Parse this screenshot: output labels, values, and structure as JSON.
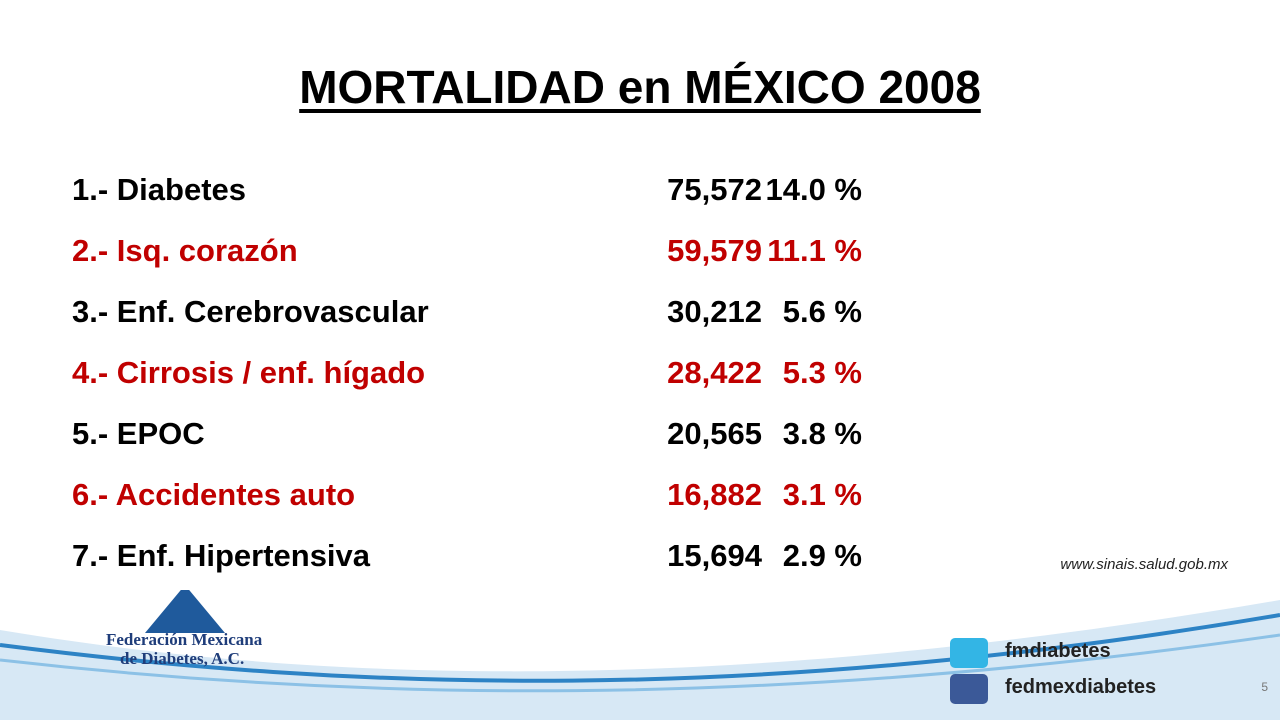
{
  "header": {
    "title": "MORTALIDAD en MÉXICO 2008"
  },
  "table": {
    "rows": [
      [
        "1.- Diabetes",
        "75,572",
        "14.0 %"
      ],
      [
        "2.- Isq. corazón",
        "59,579",
        "11.1 %"
      ],
      [
        "3.- Enf. Cerebrovascular",
        "30,212",
        "5.6 %"
      ],
      [
        "4.- Cirrosis / enf. hígado",
        "28,422",
        "5.3 %"
      ],
      [
        "5.- EPOC",
        "20,565",
        "3.8 %"
      ],
      [
        "6.- Accidentes auto",
        "16,882",
        "3.1 %"
      ],
      [
        "7.- Enf. Hipertensiva",
        "15,694",
        "2.9 %"
      ]
    ]
  },
  "source": "www.sinais.salud.gob.mx",
  "logo": {
    "line1": "Federación Mexicana",
    "line2": "de Diabetes, A.C."
  },
  "social": {
    "twitter": "fmdiabetes",
    "facebook": "fedmexdiabetes"
  },
  "page_number": "5"
}
